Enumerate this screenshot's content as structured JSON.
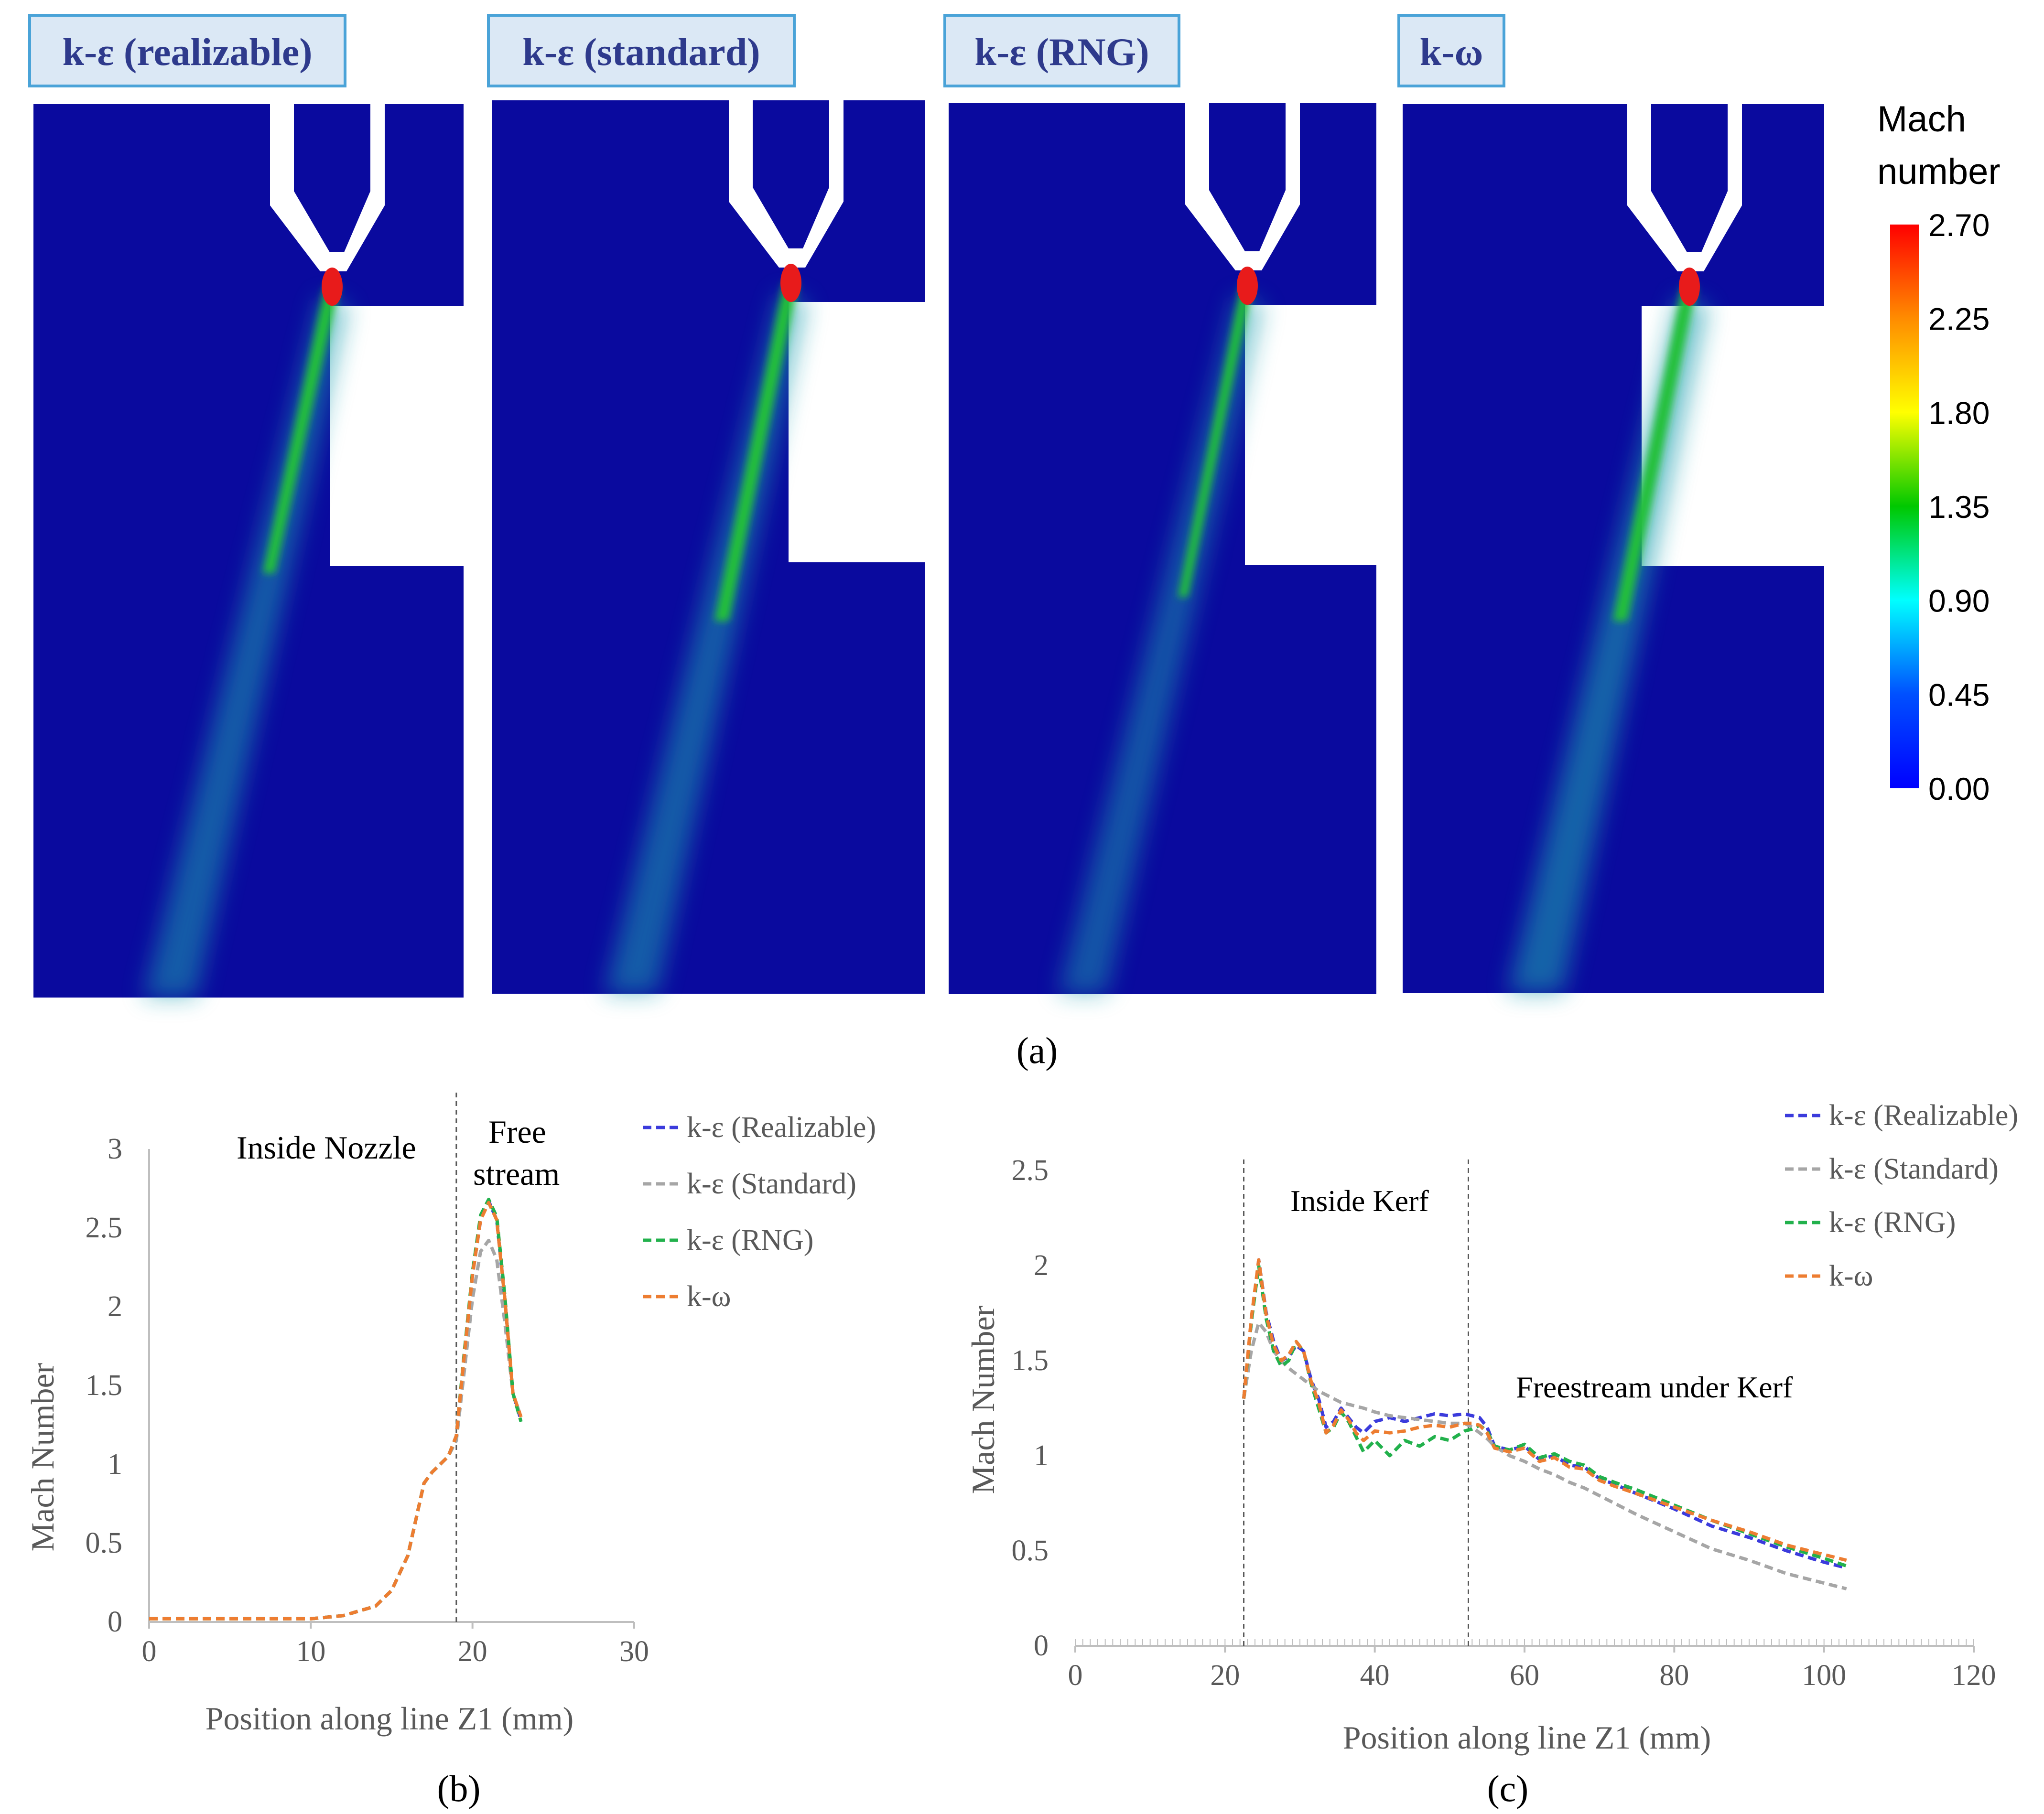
{
  "figure": {
    "panel_a": {
      "label": "(a)",
      "contours": [
        {
          "title": "k-ε (realizable)",
          "jet_label": "realizable"
        },
        {
          "title": "k-ε (standard)",
          "jet_label": "standard"
        },
        {
          "title": "k-ε (RNG)",
          "jet_label": "rng"
        },
        {
          "title": "k-ω",
          "jet_label": "komega"
        }
      ],
      "colorbar": {
        "title_line1": "Mach",
        "title_line2": "number",
        "ticks": [
          "2.70",
          "2.25",
          "1.80",
          "1.35",
          "0.90",
          "0.45",
          "0.00"
        ],
        "colors": [
          "#ff0000",
          "#ff8c00",
          "#ffff00",
          "#00c800",
          "#00ffff",
          "#0050ff",
          "#0000ff"
        ]
      }
    },
    "panel_b": {
      "label": "(b)"
    },
    "panel_c": {
      "label": "(c)"
    }
  },
  "chart_data": [
    {
      "id": "panel-b",
      "type": "line",
      "xlabel": "Position along line Z1 (mm)",
      "ylabel": "Mach Number",
      "xlim": [
        0,
        30
      ],
      "ylim": [
        0,
        3
      ],
      "xticks": [
        0,
        10,
        20,
        30
      ],
      "yticks": [
        0,
        0.5,
        1,
        1.5,
        2,
        2.5,
        3
      ],
      "vlines": [
        19
      ],
      "annotations": [
        "Inside Nozzle",
        "Free",
        "stream"
      ],
      "legend": {
        "position": "top-right"
      },
      "series": [
        {
          "name": "k-ε (Realizable)",
          "color": "#3b3bdc",
          "x": [
            0,
            5,
            10,
            12,
            14,
            15,
            16,
            17,
            17.5,
            18,
            18.5,
            19,
            19.5,
            20,
            20.5,
            21,
            21.5,
            22,
            22.5,
            23
          ],
          "y": [
            0.02,
            0.02,
            0.02,
            0.04,
            0.1,
            0.2,
            0.42,
            0.88,
            0.95,
            1.0,
            1.05,
            1.18,
            1.7,
            2.2,
            2.55,
            2.67,
            2.55,
            2.05,
            1.45,
            1.28
          ]
        },
        {
          "name": "k-ε (Standard)",
          "color": "#a6a6a6",
          "x": [
            0,
            5,
            10,
            12,
            14,
            15,
            16,
            17,
            17.5,
            18,
            18.5,
            19,
            19.5,
            20,
            20.5,
            21,
            21.5,
            22,
            22.5,
            23
          ],
          "y": [
            0.02,
            0.02,
            0.02,
            0.04,
            0.1,
            0.2,
            0.42,
            0.88,
            0.95,
            1.0,
            1.05,
            1.15,
            1.6,
            2.05,
            2.35,
            2.42,
            2.3,
            1.9,
            1.45,
            1.3
          ]
        },
        {
          "name": "k-ε (RNG)",
          "color": "#22b14c",
          "x": [
            0,
            5,
            10,
            12,
            14,
            15,
            16,
            17,
            17.5,
            18,
            18.5,
            19,
            19.5,
            20,
            20.5,
            21,
            21.5,
            22,
            22.5,
            23
          ],
          "y": [
            0.02,
            0.02,
            0.02,
            0.04,
            0.1,
            0.2,
            0.42,
            0.88,
            0.95,
            1.0,
            1.05,
            1.18,
            1.72,
            2.22,
            2.58,
            2.68,
            2.57,
            2.07,
            1.45,
            1.27
          ]
        },
        {
          "name": "k-ω",
          "color": "#ed7d31",
          "x": [
            0,
            5,
            10,
            12,
            14,
            15,
            16,
            17,
            17.5,
            18,
            18.5,
            19,
            19.5,
            20,
            20.5,
            21,
            21.5,
            22,
            22.5,
            23
          ],
          "y": [
            0.02,
            0.02,
            0.02,
            0.04,
            0.1,
            0.2,
            0.42,
            0.88,
            0.95,
            1.0,
            1.05,
            1.18,
            1.7,
            2.2,
            2.55,
            2.66,
            2.55,
            2.05,
            1.45,
            1.3
          ]
        }
      ]
    },
    {
      "id": "panel-c",
      "type": "line",
      "xlabel": "Position along line Z1 (mm)",
      "ylabel": "Mach Number",
      "xlim": [
        0,
        120
      ],
      "ylim": [
        0,
        2.5
      ],
      "xticks": [
        0,
        20,
        40,
        60,
        80,
        100,
        120
      ],
      "yticks": [
        0,
        0.5,
        1,
        1.5,
        2,
        2.5
      ],
      "vlines": [
        22.5,
        52.5
      ],
      "annotations": [
        "Inside Kerf",
        "Freestream under Kerf"
      ],
      "legend": {
        "position": "top-right"
      },
      "series": [
        {
          "name": "k-ε (Realizable)",
          "color": "#3b3bdc",
          "x": [
            22.5,
            23.5,
            24.5,
            25.5,
            26.5,
            27.5,
            28.5,
            29.5,
            30.5,
            31.5,
            32.5,
            33.5,
            34.5,
            35.5,
            36.5,
            37.5,
            38.5,
            40,
            42,
            44,
            46,
            48,
            50,
            52,
            53,
            54,
            55,
            56,
            58,
            60,
            62,
            64,
            66,
            68,
            70,
            72,
            75,
            80,
            85,
            90,
            95,
            100,
            103
          ],
          "y": [
            1.3,
            1.7,
            2.03,
            1.75,
            1.6,
            1.5,
            1.52,
            1.58,
            1.55,
            1.4,
            1.3,
            1.15,
            1.18,
            1.25,
            1.2,
            1.15,
            1.12,
            1.18,
            1.2,
            1.18,
            1.2,
            1.22,
            1.21,
            1.22,
            1.21,
            1.2,
            1.15,
            1.05,
            1.03,
            1.05,
            0.98,
            1.0,
            0.95,
            0.94,
            0.88,
            0.85,
            0.8,
            0.72,
            0.63,
            0.57,
            0.5,
            0.44,
            0.41
          ]
        },
        {
          "name": "k-ε (Standard)",
          "color": "#a6a6a6",
          "x": [
            22.5,
            23.5,
            24.5,
            25.5,
            26.5,
            27.5,
            28.5,
            29.5,
            30.5,
            31.5,
            32.5,
            33.5,
            34.5,
            35.5,
            36.5,
            37.5,
            38.5,
            40,
            42,
            44,
            46,
            48,
            50,
            52,
            53,
            54,
            55,
            56,
            58,
            60,
            62,
            64,
            66,
            68,
            70,
            72,
            75,
            80,
            85,
            90,
            95,
            100,
            103
          ],
          "y": [
            1.3,
            1.55,
            1.7,
            1.65,
            1.55,
            1.5,
            1.46,
            1.43,
            1.4,
            1.37,
            1.34,
            1.32,
            1.3,
            1.28,
            1.27,
            1.26,
            1.25,
            1.23,
            1.21,
            1.2,
            1.19,
            1.18,
            1.17,
            1.17,
            1.15,
            1.12,
            1.09,
            1.05,
            1.0,
            0.97,
            0.93,
            0.9,
            0.86,
            0.83,
            0.79,
            0.75,
            0.69,
            0.6,
            0.51,
            0.45,
            0.38,
            0.33,
            0.3
          ]
        },
        {
          "name": "k-ε (RNG)",
          "color": "#22b14c",
          "x": [
            22.5,
            23.5,
            24.5,
            25.5,
            26.5,
            27.5,
            28.5,
            29.5,
            30.5,
            31.5,
            32.5,
            33.5,
            34.5,
            35.5,
            36.5,
            37.5,
            38.5,
            40,
            42,
            44,
            46,
            48,
            50,
            52,
            53,
            54,
            55,
            56,
            58,
            60,
            62,
            64,
            66,
            68,
            70,
            72,
            75,
            80,
            85,
            90,
            95,
            100,
            103
          ],
          "y": [
            1.3,
            1.7,
            2.0,
            1.72,
            1.55,
            1.47,
            1.5,
            1.6,
            1.55,
            1.38,
            1.25,
            1.12,
            1.15,
            1.23,
            1.18,
            1.1,
            1.02,
            1.08,
            1.0,
            1.08,
            1.05,
            1.1,
            1.08,
            1.13,
            1.14,
            1.16,
            1.13,
            1.05,
            1.03,
            1.06,
            0.99,
            1.01,
            0.97,
            0.95,
            0.89,
            0.86,
            0.82,
            0.74,
            0.66,
            0.59,
            0.52,
            0.46,
            0.42
          ]
        },
        {
          "name": "k-ω",
          "color": "#ed7d31",
          "x": [
            22.5,
            23.5,
            24.5,
            25.5,
            26.5,
            27.5,
            28.5,
            29.5,
            30.5,
            31.5,
            32.5,
            33.5,
            34.5,
            35.5,
            36.5,
            37.5,
            38.5,
            40,
            42,
            44,
            46,
            48,
            50,
            52,
            53,
            54,
            55,
            56,
            58,
            60,
            62,
            64,
            66,
            68,
            70,
            72,
            75,
            80,
            85,
            90,
            95,
            100,
            103
          ],
          "y": [
            1.3,
            1.72,
            2.03,
            1.74,
            1.58,
            1.5,
            1.53,
            1.6,
            1.55,
            1.39,
            1.28,
            1.12,
            1.16,
            1.24,
            1.19,
            1.12,
            1.08,
            1.13,
            1.12,
            1.13,
            1.15,
            1.16,
            1.15,
            1.17,
            1.17,
            1.16,
            1.12,
            1.04,
            1.02,
            1.04,
            0.97,
            0.99,
            0.94,
            0.93,
            0.87,
            0.84,
            0.8,
            0.73,
            0.66,
            0.6,
            0.53,
            0.48,
            0.45
          ]
        }
      ]
    }
  ]
}
